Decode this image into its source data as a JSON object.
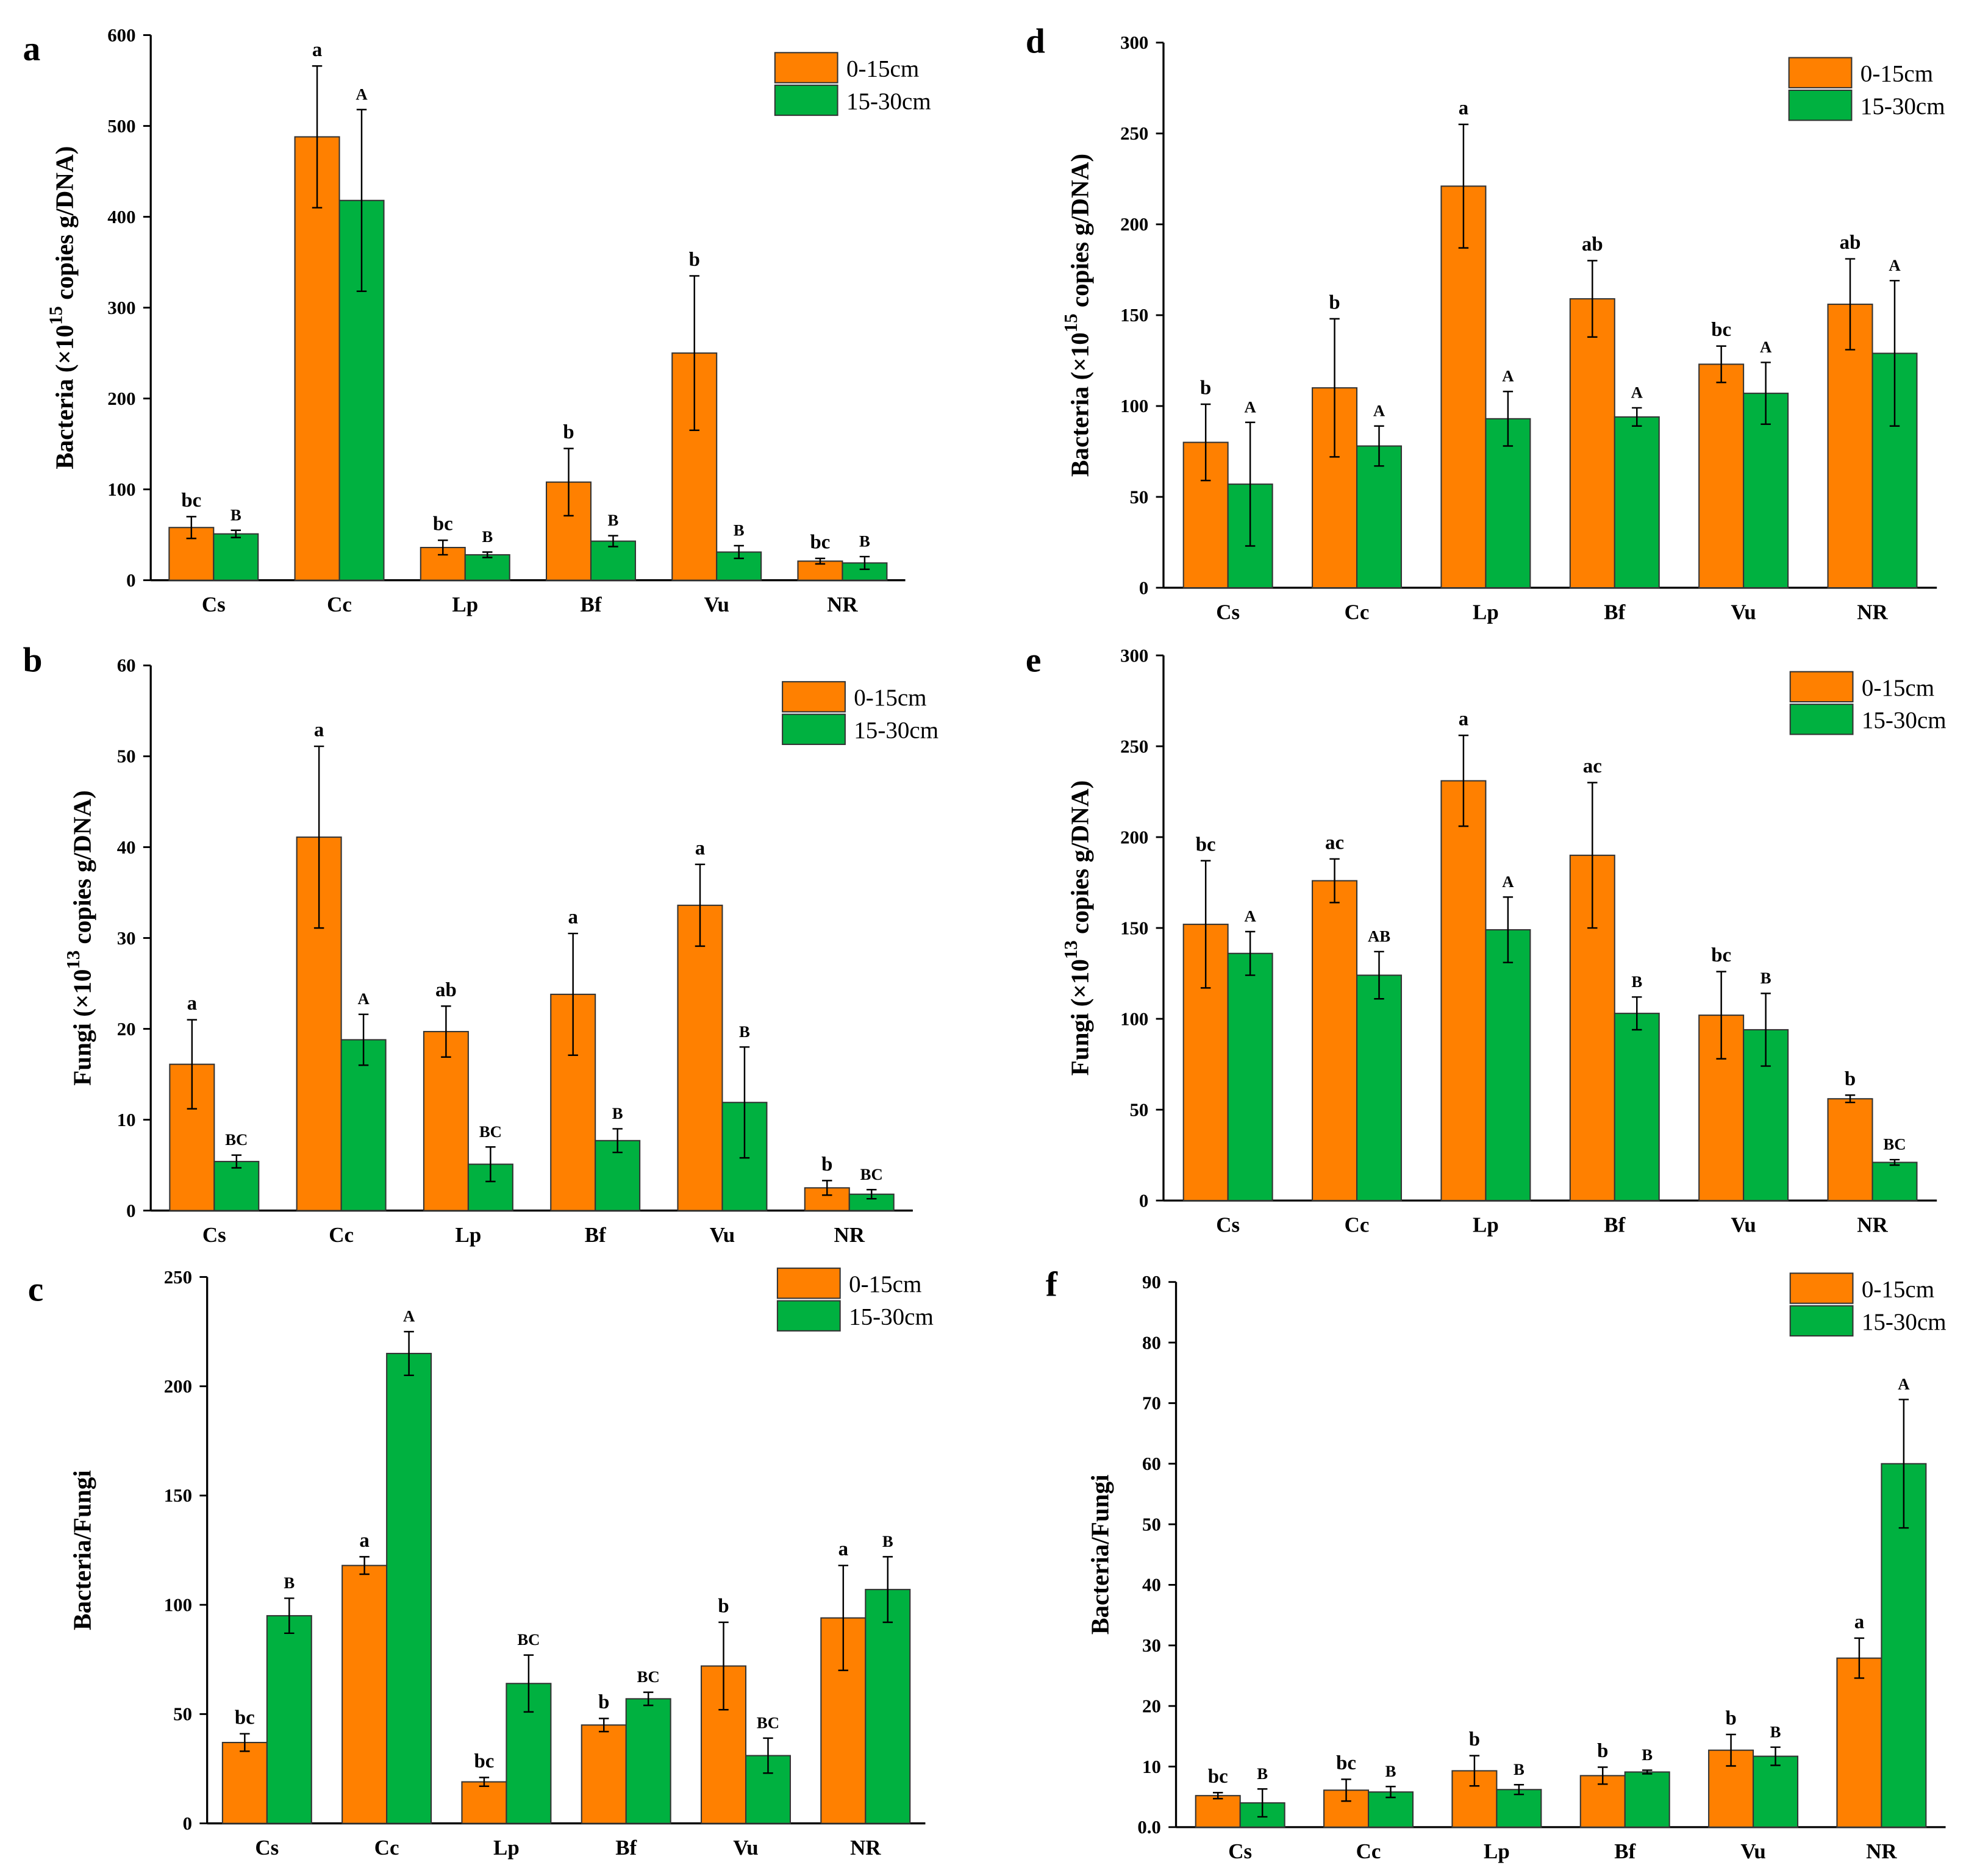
{
  "colors": {
    "orange": "#FF8000",
    "green": "#00B140",
    "axis": "#000000"
  },
  "legend": [
    "0-15cm",
    "15-30cm"
  ],
  "chart_data": [
    {
      "panel": "a",
      "type": "bar",
      "categories": [
        "Cs",
        "Cc",
        "Lp",
        "Bf",
        "Vu",
        "NR"
      ],
      "ylabel": {
        "pre": "Bacteria (×10",
        "sup": "15",
        "post": " copies g/DNA)"
      },
      "ylim": [
        0,
        600
      ],
      "yticks": [
        "0",
        "100",
        "200",
        "300",
        "400",
        "500",
        "600"
      ],
      "series": [
        {
          "name": "0-15cm",
          "values": [
            58,
            488,
            36,
            108,
            250,
            21
          ],
          "errors": [
            12,
            78,
            8,
            37,
            85,
            3
          ],
          "letters": [
            "bc",
            "a",
            "bc",
            "b",
            "b",
            "bc"
          ]
        },
        {
          "name": "15-30cm",
          "values": [
            51,
            418,
            28,
            43,
            31,
            19
          ],
          "errors": [
            4,
            100,
            3,
            6,
            7,
            7
          ],
          "letters": [
            "B",
            "A",
            "B",
            "B",
            "B",
            "B"
          ]
        }
      ]
    },
    {
      "panel": "b",
      "type": "bar",
      "categories": [
        "Cs",
        "Cc",
        "Lp",
        "Bf",
        "Vu",
        "NR"
      ],
      "ylabel": {
        "pre": "Fungi  (×10",
        "sup": "13",
        "post": " copies g/DNA)"
      },
      "ylim": [
        0,
        60
      ],
      "yticks": [
        "0",
        "10",
        "20",
        "30",
        "40",
        "50",
        "60"
      ],
      "series": [
        {
          "name": "0-15cm",
          "values": [
            16.1,
            41.1,
            19.7,
            23.8,
            33.6,
            2.5
          ],
          "errors": [
            4.9,
            10,
            2.8,
            6.7,
            4.5,
            0.8
          ],
          "letters": [
            "a",
            "a",
            "ab",
            "a",
            "a",
            "b"
          ]
        },
        {
          "name": "15-30cm",
          "values": [
            5.4,
            18.8,
            5.1,
            7.7,
            11.9,
            1.8
          ],
          "errors": [
            0.7,
            2.8,
            1.9,
            1.3,
            6.1,
            0.5
          ],
          "letters": [
            "BC",
            "A",
            "BC",
            "B",
            "B",
            "BC"
          ]
        }
      ]
    },
    {
      "panel": "c",
      "type": "bar",
      "categories": [
        "Cs",
        "Cc",
        "Lp",
        "Bf",
        "Vu",
        "NR"
      ],
      "ylabel": {
        "pre": "Bacteria/Fungi",
        "sup": "",
        "post": ""
      },
      "ylim": [
        0,
        250
      ],
      "yticks": [
        "0",
        "50",
        "100",
        "150",
        "200",
        "250"
      ],
      "series": [
        {
          "name": "0-15cm",
          "values": [
            37,
            118,
            19,
            45,
            72,
            94
          ],
          "errors": [
            4,
            4,
            2,
            3,
            20,
            24
          ],
          "letters": [
            "bc",
            "a",
            "bc",
            "b",
            "b",
            "a"
          ]
        },
        {
          "name": "15-30cm",
          "values": [
            95,
            215,
            64,
            57,
            31,
            107
          ],
          "errors": [
            8,
            10,
            13,
            3,
            8,
            15
          ],
          "letters": [
            "B",
            "A",
            "BC",
            "BC",
            "BC",
            "B"
          ]
        }
      ]
    },
    {
      "panel": "d",
      "type": "bar",
      "categories": [
        "Cs",
        "Cc",
        "Lp",
        "Bf",
        "Vu",
        "NR"
      ],
      "ylabel": {
        "pre": "Bacteria (×10",
        "sup": "15",
        "post": " copies g/DNA)"
      },
      "ylim": [
        0,
        300
      ],
      "yticks": [
        "0",
        "50",
        "100",
        "150",
        "200",
        "250",
        "300"
      ],
      "series": [
        {
          "name": "0-15cm",
          "values": [
            80,
            110,
            221,
            159,
            123,
            156
          ],
          "errors": [
            21,
            38,
            34,
            21,
            10,
            25
          ],
          "letters": [
            "b",
            "b",
            "a",
            "ab",
            "bc",
            "ab"
          ]
        },
        {
          "name": "15-30cm",
          "values": [
            57,
            78,
            93,
            94,
            107,
            129
          ],
          "errors": [
            34,
            11,
            15,
            5,
            17,
            40
          ],
          "letters": [
            "A",
            "A",
            "A",
            "A",
            "A",
            "A"
          ]
        }
      ]
    },
    {
      "panel": "e",
      "type": "bar",
      "categories": [
        "Cs",
        "Cc",
        "Lp",
        "Bf",
        "Vu",
        "NR"
      ],
      "ylabel": {
        "pre": "Fungi (×10",
        "sup": "13",
        "post": " copies g/DNA)"
      },
      "ylim": [
        0,
        300
      ],
      "yticks": [
        "0",
        "50",
        "100",
        "150",
        "200",
        "250",
        "300"
      ],
      "series": [
        {
          "name": "0-15cm",
          "values": [
            152,
            176,
            231,
            190,
            102,
            56
          ],
          "errors": [
            35,
            12,
            25,
            40,
            24,
            2
          ],
          "letters": [
            "bc",
            "ac",
            "a",
            "ac",
            "bc",
            "b"
          ]
        },
        {
          "name": "15-30cm",
          "values": [
            136,
            124,
            149,
            103,
            94,
            21
          ],
          "errors": [
            12,
            13,
            18,
            9,
            20,
            1.5
          ],
          "letters": [
            "A",
            "AB",
            "A",
            "B",
            "B",
            "BC"
          ]
        }
      ]
    },
    {
      "panel": "f",
      "type": "bar",
      "categories": [
        "Cs",
        "Cc",
        "Lp",
        "Bf",
        "Vu",
        "NR"
      ],
      "ylabel": {
        "pre": "Bacteria/Fungi",
        "sup": "",
        "post": ""
      },
      "ylim": [
        0,
        90
      ],
      "yticks": [
        "0.0",
        "10",
        "20",
        "30",
        "40",
        "50",
        "60",
        "70",
        "80",
        "90"
      ],
      "series": [
        {
          "name": "0-15cm",
          "values": [
            5.2,
            6.1,
            9.3,
            8.5,
            12.7,
            27.9
          ],
          "errors": [
            0.5,
            1.8,
            2.5,
            1.4,
            2.6,
            3.3
          ],
          "letters": [
            "bc",
            "bc",
            "b",
            "b",
            "b",
            "a"
          ]
        },
        {
          "name": "15-30cm",
          "values": [
            4,
            5.8,
            6.2,
            9.1,
            11.7,
            60
          ],
          "errors": [
            2.3,
            0.9,
            0.8,
            0.3,
            1.5,
            10.6
          ],
          "letters": [
            "B",
            "B",
            "B",
            "B",
            "B",
            "A"
          ]
        }
      ]
    }
  ]
}
